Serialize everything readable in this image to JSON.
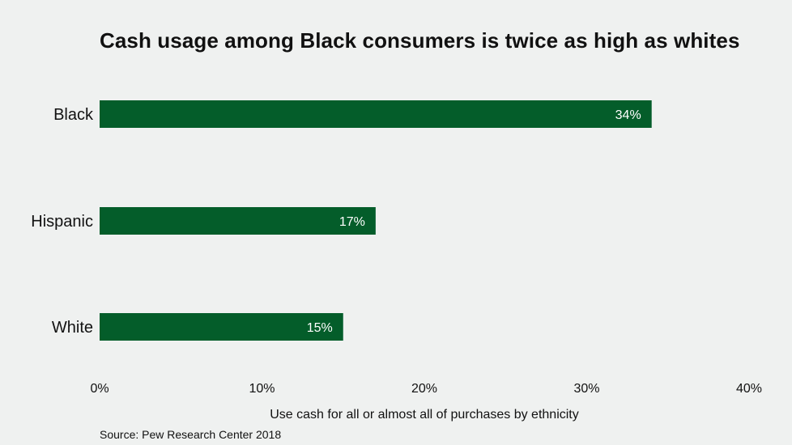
{
  "chart_data": {
    "type": "bar",
    "orientation": "horizontal",
    "title": "Cash usage among Black consumers is twice as high as whites",
    "categories": [
      "Black",
      "Hispanic",
      "White"
    ],
    "values": [
      34,
      17,
      15
    ],
    "value_labels": [
      "34%",
      "17%",
      "15%"
    ],
    "xlabel": "Use cash for all or almost all of purchases by ethnicity",
    "ylabel": "",
    "xlim": [
      0,
      40
    ],
    "x_ticks": [
      0,
      10,
      20,
      30,
      40
    ],
    "x_tick_labels": [
      "0%",
      "10%",
      "20%",
      "30%",
      "40%"
    ],
    "grid": false,
    "bar_color": "#045d2a",
    "label_color": "#ffffff"
  },
  "source": "Source: Pew Research Center 2018"
}
